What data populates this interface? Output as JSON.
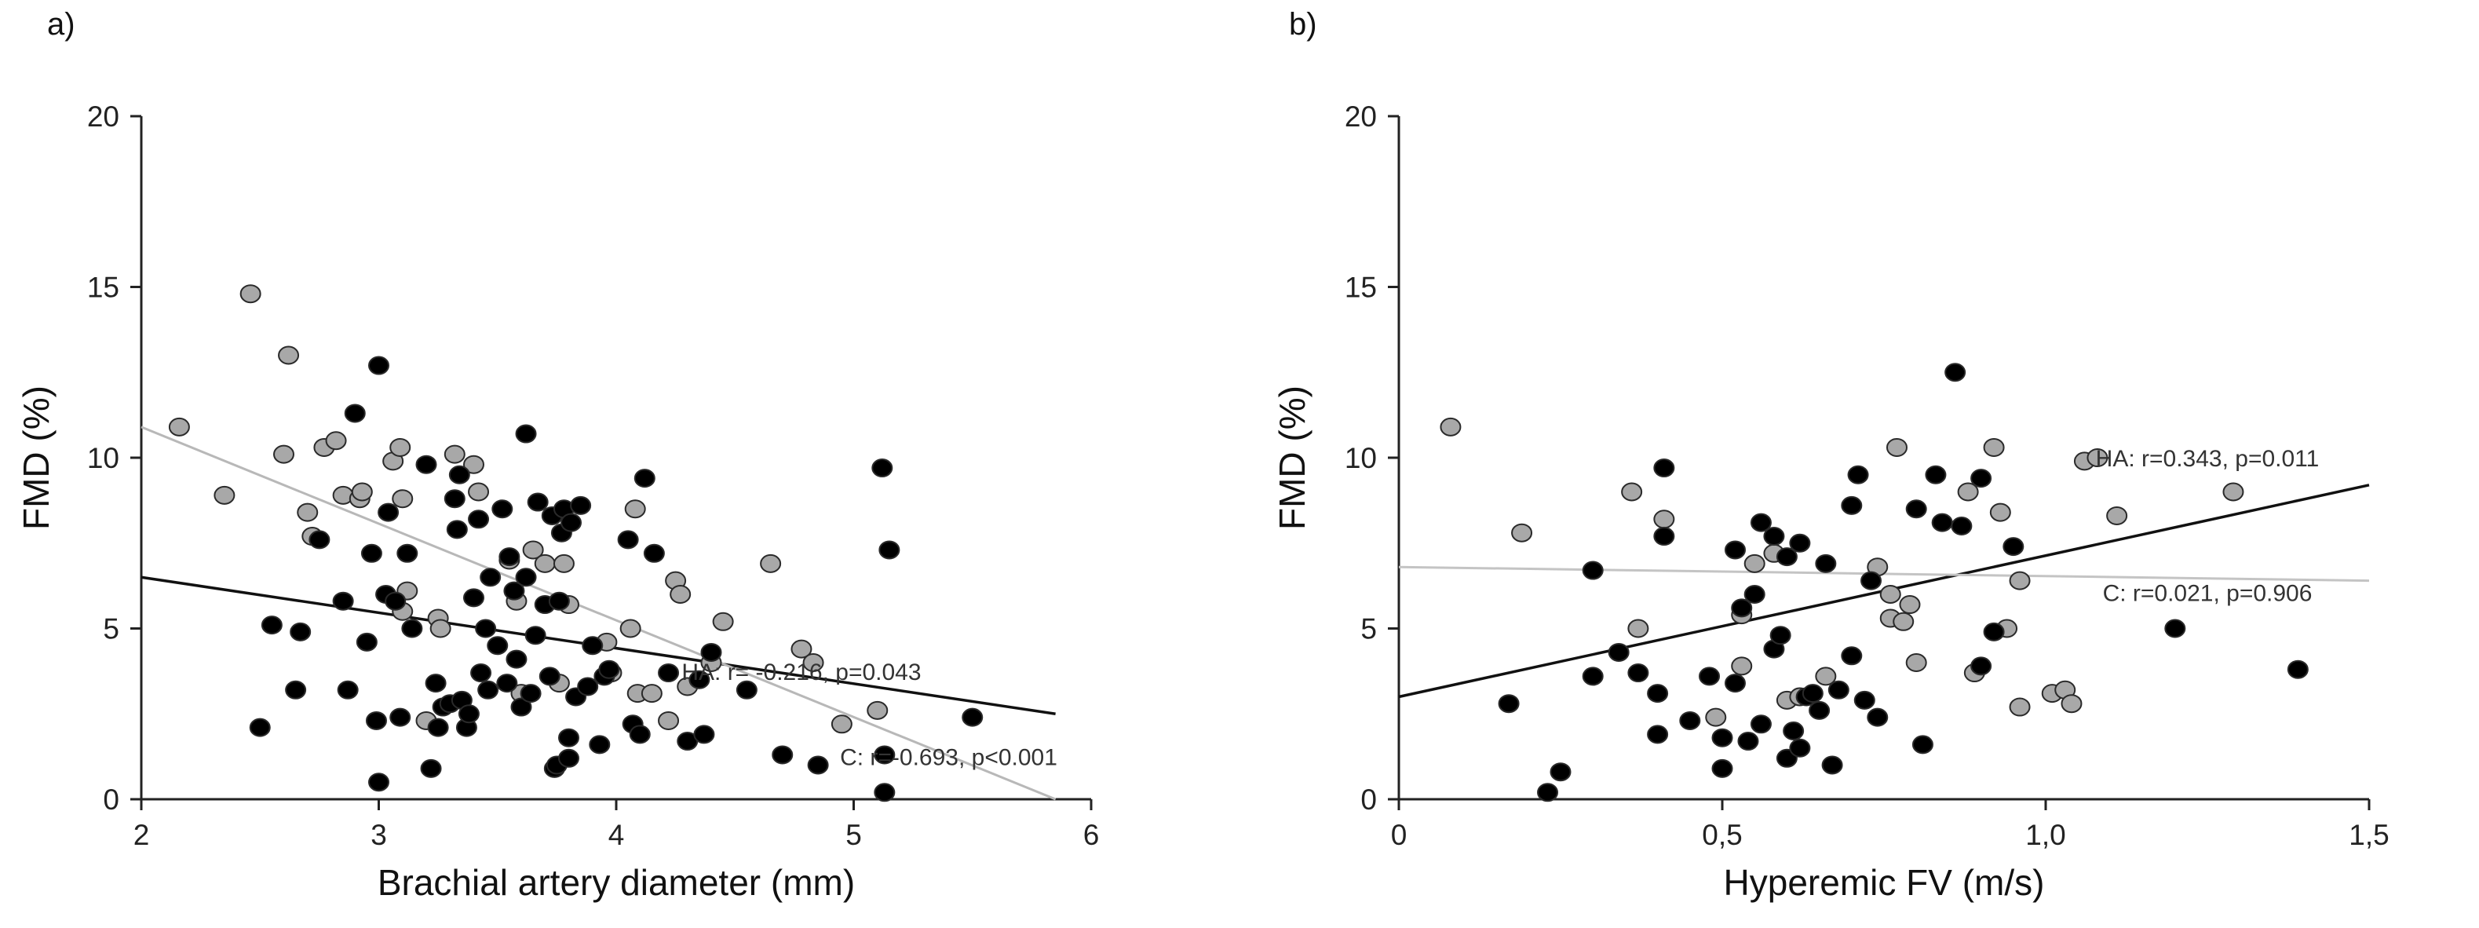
{
  "chart_data": [
    {
      "type": "scatter",
      "panel_label": "a)",
      "title": "",
      "xlabel": "Brachial artery diameter (mm)",
      "ylabel": "FMD (%)",
      "xlim": [
        2,
        6
      ],
      "ylim": [
        0,
        20
      ],
      "xticks": [
        "2",
        "3",
        "4",
        "5",
        "6"
      ],
      "yticks": [
        "0",
        "5",
        "10",
        "15",
        "20"
      ],
      "series": [
        {
          "name": "HA",
          "color": "#000000",
          "points": [
            [
              2.5,
              2.1
            ],
            [
              2.55,
              5.1
            ],
            [
              2.65,
              3.2
            ],
            [
              2.67,
              4.9
            ],
            [
              2.75,
              7.6
            ],
            [
              2.85,
              5.8
            ],
            [
              2.87,
              3.2
            ],
            [
              2.9,
              11.3
            ],
            [
              2.95,
              4.6
            ],
            [
              2.97,
              7.2
            ],
            [
              2.99,
              2.3
            ],
            [
              3.0,
              12.7
            ],
            [
              3.0,
              0.5
            ],
            [
              3.03,
              6.0
            ],
            [
              3.04,
              8.4
            ],
            [
              3.07,
              5.8
            ],
            [
              3.09,
              2.4
            ],
            [
              3.12,
              7.2
            ],
            [
              3.14,
              5.0
            ],
            [
              3.2,
              9.8
            ],
            [
              3.22,
              0.9
            ],
            [
              3.24,
              3.4
            ],
            [
              3.25,
              2.1
            ],
            [
              3.27,
              2.7
            ],
            [
              3.3,
              2.8
            ],
            [
              3.32,
              8.8
            ],
            [
              3.33,
              7.9
            ],
            [
              3.34,
              9.5
            ],
            [
              3.35,
              2.9
            ],
            [
              3.37,
              2.1
            ],
            [
              3.38,
              2.5
            ],
            [
              3.4,
              5.9
            ],
            [
              3.42,
              8.2
            ],
            [
              3.43,
              3.7
            ],
            [
              3.45,
              5.0
            ],
            [
              3.46,
              3.2
            ],
            [
              3.47,
              6.5
            ],
            [
              3.5,
              4.5
            ],
            [
              3.52,
              8.5
            ],
            [
              3.54,
              3.4
            ],
            [
              3.55,
              7.1
            ],
            [
              3.57,
              6.1
            ],
            [
              3.58,
              4.1
            ],
            [
              3.6,
              2.7
            ],
            [
              3.62,
              10.7
            ],
            [
              3.62,
              6.5
            ],
            [
              3.64,
              3.1
            ],
            [
              3.66,
              4.8
            ],
            [
              3.67,
              8.7
            ],
            [
              3.7,
              5.7
            ],
            [
              3.72,
              3.6
            ],
            [
              3.73,
              8.3
            ],
            [
              3.74,
              0.9
            ],
            [
              3.75,
              1.0
            ],
            [
              3.76,
              5.8
            ],
            [
              3.77,
              7.8
            ],
            [
              3.78,
              8.5
            ],
            [
              3.8,
              1.2
            ],
            [
              3.8,
              1.8
            ],
            [
              3.81,
              8.1
            ],
            [
              3.83,
              3.0
            ],
            [
              3.85,
              8.6
            ],
            [
              3.88,
              3.3
            ],
            [
              3.9,
              4.5
            ],
            [
              3.93,
              1.6
            ],
            [
              3.95,
              3.6
            ],
            [
              3.97,
              3.8
            ],
            [
              4.05,
              7.6
            ],
            [
              4.07,
              2.2
            ],
            [
              4.1,
              1.9
            ],
            [
              4.12,
              9.4
            ],
            [
              4.16,
              7.2
            ],
            [
              4.22,
              3.7
            ],
            [
              4.3,
              1.7
            ],
            [
              4.35,
              3.5
            ],
            [
              4.37,
              1.9
            ],
            [
              4.4,
              4.3
            ],
            [
              4.55,
              3.2
            ],
            [
              4.7,
              1.3
            ],
            [
              4.85,
              1.0
            ],
            [
              5.12,
              9.7
            ],
            [
              5.13,
              1.3
            ],
            [
              5.13,
              0.2
            ],
            [
              5.15,
              7.3
            ],
            [
              5.5,
              2.4
            ]
          ]
        },
        {
          "name": "C",
          "color": "#a8a8a8",
          "points": [
            [
              2.16,
              10.9
            ],
            [
              2.35,
              8.9
            ],
            [
              2.46,
              14.8
            ],
            [
              2.6,
              10.1
            ],
            [
              2.62,
              13.0
            ],
            [
              2.7,
              8.4
            ],
            [
              2.72,
              7.7
            ],
            [
              2.77,
              10.3
            ],
            [
              2.82,
              10.5
            ],
            [
              2.85,
              8.9
            ],
            [
              2.92,
              8.8
            ],
            [
              2.93,
              9.0
            ],
            [
              3.06,
              9.9
            ],
            [
              3.09,
              10.3
            ],
            [
              3.1,
              5.5
            ],
            [
              3.1,
              8.8
            ],
            [
              3.12,
              6.1
            ],
            [
              3.2,
              2.3
            ],
            [
              3.25,
              5.3
            ],
            [
              3.26,
              5.0
            ],
            [
              3.32,
              10.1
            ],
            [
              3.4,
              9.8
            ],
            [
              3.42,
              9.0
            ],
            [
              3.55,
              7.0
            ],
            [
              3.58,
              5.8
            ],
            [
              3.6,
              3.1
            ],
            [
              3.65,
              7.3
            ],
            [
              3.7,
              6.9
            ],
            [
              3.76,
              3.4
            ],
            [
              3.78,
              6.9
            ],
            [
              3.8,
              5.7
            ],
            [
              3.96,
              4.6
            ],
            [
              3.98,
              3.7
            ],
            [
              4.06,
              5.0
            ],
            [
              4.08,
              8.5
            ],
            [
              4.09,
              3.1
            ],
            [
              4.15,
              3.1
            ],
            [
              4.22,
              2.3
            ],
            [
              4.25,
              6.4
            ],
            [
              4.27,
              6.0
            ],
            [
              4.3,
              3.3
            ],
            [
              4.4,
              4.0
            ],
            [
              4.45,
              5.2
            ],
            [
              4.65,
              6.9
            ],
            [
              4.78,
              4.4
            ],
            [
              4.83,
              4.0
            ],
            [
              4.95,
              2.2
            ],
            [
              5.1,
              2.6
            ]
          ]
        }
      ],
      "fit_lines": [
        {
          "name": "HA",
          "color": "#111111",
          "x": [
            2,
            5.85
          ],
          "y": [
            6.5,
            2.5
          ]
        },
        {
          "name": "C",
          "color": "#b8b8b8",
          "x": [
            2,
            5.85
          ],
          "y": [
            10.9,
            0.0
          ]
        }
      ],
      "annotations": [
        {
          "id": "ha",
          "text": "HA: r= -0.216, p=0.043",
          "x": 4.78,
          "y": 3.5
        },
        {
          "id": "c",
          "text": "C: r=-0.693,  p<0.001",
          "x": 5.4,
          "y": 1.0
        }
      ]
    },
    {
      "type": "scatter",
      "panel_label": "b)",
      "title": "",
      "xlabel": "Hyperemic  FV (m/s)",
      "ylabel": "FMD  (%)",
      "xlim": [
        0,
        1.5
      ],
      "ylim": [
        0,
        20
      ],
      "xticks": [
        "0",
        "0,5",
        "1,0",
        "1,5"
      ],
      "yticks": [
        "0",
        "5",
        "10",
        "15",
        "20"
      ],
      "series": [
        {
          "name": "HA",
          "color": "#000000",
          "points": [
            [
              0.17,
              2.8
            ],
            [
              0.23,
              0.2
            ],
            [
              0.25,
              0.8
            ],
            [
              0.3,
              6.7
            ],
            [
              0.3,
              3.6
            ],
            [
              0.34,
              4.3
            ],
            [
              0.37,
              3.7
            ],
            [
              0.4,
              1.9
            ],
            [
              0.4,
              3.1
            ],
            [
              0.41,
              9.7
            ],
            [
              0.41,
              7.7
            ],
            [
              0.45,
              2.3
            ],
            [
              0.48,
              3.6
            ],
            [
              0.5,
              0.9
            ],
            [
              0.5,
              1.8
            ],
            [
              0.52,
              7.3
            ],
            [
              0.52,
              3.4
            ],
            [
              0.53,
              5.6
            ],
            [
              0.54,
              1.7
            ],
            [
              0.55,
              6.0
            ],
            [
              0.56,
              2.2
            ],
            [
              0.56,
              8.1
            ],
            [
              0.58,
              7.7
            ],
            [
              0.58,
              4.4
            ],
            [
              0.59,
              4.8
            ],
            [
              0.6,
              1.2
            ],
            [
              0.6,
              7.1
            ],
            [
              0.61,
              2.0
            ],
            [
              0.62,
              7.5
            ],
            [
              0.62,
              1.5
            ],
            [
              0.63,
              3.0
            ],
            [
              0.64,
              3.1
            ],
            [
              0.65,
              2.6
            ],
            [
              0.66,
              6.9
            ],
            [
              0.67,
              1.0
            ],
            [
              0.68,
              3.2
            ],
            [
              0.7,
              8.6
            ],
            [
              0.7,
              4.2
            ],
            [
              0.71,
              9.5
            ],
            [
              0.72,
              2.9
            ],
            [
              0.73,
              6.4
            ],
            [
              0.74,
              2.4
            ],
            [
              0.8,
              8.5
            ],
            [
              0.81,
              1.6
            ],
            [
              0.83,
              9.5
            ],
            [
              0.84,
              8.1
            ],
            [
              0.86,
              12.5
            ],
            [
              0.87,
              8.0
            ],
            [
              0.9,
              3.9
            ],
            [
              0.9,
              9.4
            ],
            [
              0.92,
              4.9
            ],
            [
              0.95,
              7.4
            ],
            [
              1.2,
              5.0
            ],
            [
              1.39,
              3.8
            ]
          ]
        },
        {
          "name": "C",
          "color": "#a8a8a8",
          "points": [
            [
              0.08,
              10.9
            ],
            [
              0.19,
              7.8
            ],
            [
              0.36,
              9.0
            ],
            [
              0.37,
              5.0
            ],
            [
              0.41,
              8.2
            ],
            [
              0.49,
              2.4
            ],
            [
              0.53,
              5.4
            ],
            [
              0.53,
              3.9
            ],
            [
              0.55,
              6.9
            ],
            [
              0.58,
              7.2
            ],
            [
              0.6,
              2.9
            ],
            [
              0.62,
              3.0
            ],
            [
              0.66,
              3.6
            ],
            [
              0.74,
              6.8
            ],
            [
              0.76,
              5.3
            ],
            [
              0.76,
              6.0
            ],
            [
              0.77,
              10.3
            ],
            [
              0.78,
              5.2
            ],
            [
              0.79,
              5.7
            ],
            [
              0.8,
              4.0
            ],
            [
              0.88,
              9.0
            ],
            [
              0.89,
              3.7
            ],
            [
              0.92,
              10.3
            ],
            [
              0.93,
              8.4
            ],
            [
              0.94,
              5.0
            ],
            [
              0.96,
              6.4
            ],
            [
              0.96,
              2.7
            ],
            [
              1.01,
              3.1
            ],
            [
              1.03,
              3.2
            ],
            [
              1.04,
              2.8
            ],
            [
              1.06,
              9.9
            ],
            [
              1.08,
              10.0
            ],
            [
              1.11,
              8.3
            ],
            [
              1.29,
              9.0
            ]
          ]
        }
      ],
      "fit_lines": [
        {
          "name": "HA",
          "color": "#111111",
          "x": [
            0,
            1.5
          ],
          "y": [
            3.0,
            9.2
          ]
        },
        {
          "name": "C",
          "color": "#c4c4c4",
          "x": [
            0,
            1.5
          ],
          "y": [
            6.8,
            6.4
          ]
        }
      ],
      "annotations": [
        {
          "id": "ha",
          "text": "HA: r=0.343, p=0.011",
          "x": 1.25,
          "y": 9.75
        },
        {
          "id": "c",
          "text": "C: r=0.021, p=0.906",
          "x": 1.25,
          "y": 5.8
        }
      ]
    }
  ]
}
